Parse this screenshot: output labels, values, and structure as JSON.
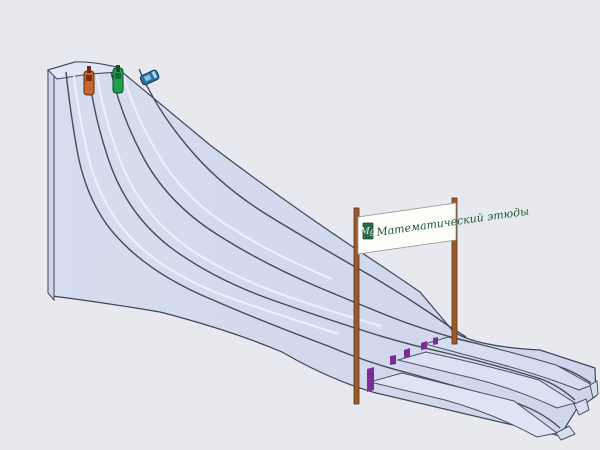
{
  "scene": {
    "background": "#e7e9ee",
    "sleds": [
      {
        "name": "orange-sled",
        "color": "#c8662b"
      },
      {
        "name": "green-sled",
        "color": "#21a04c"
      },
      {
        "name": "blue-sled",
        "color": "#2c6e9e"
      }
    ],
    "banner": {
      "logo_text": "Mg",
      "title": "Математический этюды"
    },
    "icons": {
      "logo": "mathematical-etudes-logo"
    },
    "accent_colors": {
      "finish_stripe": "#7a2d96",
      "pole": "#9c5a2a"
    }
  }
}
